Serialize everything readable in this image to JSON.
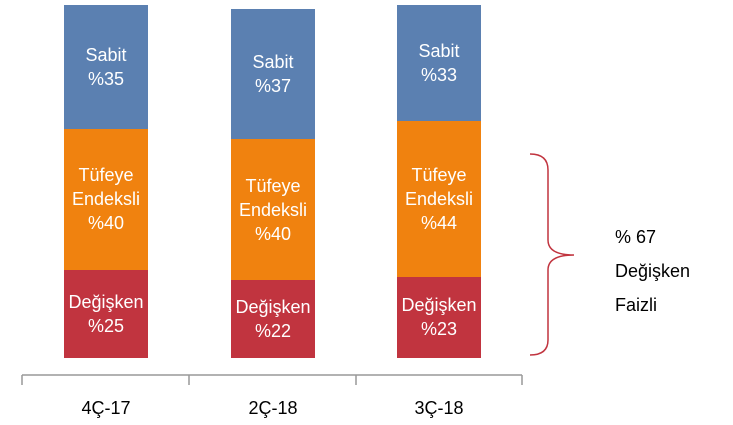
{
  "chart_data": {
    "type": "stacked_bar",
    "categories": [
      "4Ç-17",
      "2Ç-18",
      "3Ç-18"
    ],
    "series": [
      {
        "name": "Değişken",
        "color": "#c1343f",
        "values": [
          25,
          22,
          23
        ],
        "value_labels": [
          "%25",
          "%22",
          "%23"
        ]
      },
      {
        "name": "Tüfeye Endeksli",
        "color": "#f0820f",
        "values": [
          40,
          40,
          44
        ],
        "value_labels": [
          "%40",
          "%40",
          "%44"
        ]
      },
      {
        "name": "Sabit",
        "color": "#5b80b1",
        "values": [
          35,
          37,
          33
        ],
        "value_labels": [
          "%35",
          "%37",
          "%33"
        ]
      }
    ],
    "ylim": [
      0,
      100
    ],
    "annotation": "% 67 Değişken Faizli"
  }
}
